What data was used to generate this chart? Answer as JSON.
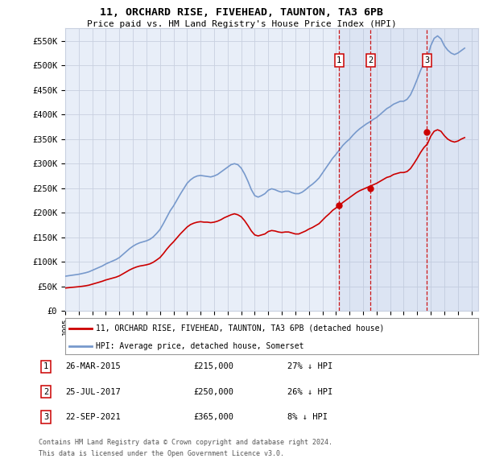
{
  "title": "11, ORCHARD RISE, FIVEHEAD, TAUNTON, TA3 6PB",
  "subtitle": "Price paid vs. HM Land Registry's House Price Index (HPI)",
  "ylim": [
    0,
    575000
  ],
  "yticks": [
    0,
    50000,
    100000,
    150000,
    200000,
    250000,
    300000,
    350000,
    400000,
    450000,
    500000,
    550000
  ],
  "ytick_labels": [
    "£0",
    "£50K",
    "£100K",
    "£150K",
    "£200K",
    "£250K",
    "£300K",
    "£350K",
    "£400K",
    "£450K",
    "£500K",
    "£550K"
  ],
  "xmin": 1995.0,
  "xmax": 2025.5,
  "background_color": "#ffffff",
  "plot_bg_color": "#e8eef8",
  "grid_color": "#c8d0e0",
  "hpi_color": "#7799cc",
  "sale_color": "#cc0000",
  "transactions": [
    {
      "label": "1",
      "date": "26-MAR-2015",
      "x": 2015.23,
      "price": 215000,
      "pct": "27% ↓ HPI"
    },
    {
      "label": "2",
      "date": "25-JUL-2017",
      "x": 2017.56,
      "price": 250000,
      "pct": "26% ↓ HPI"
    },
    {
      "label": "3",
      "date": "22-SEP-2021",
      "x": 2021.72,
      "price": 365000,
      "pct": "8% ↓ HPI"
    }
  ],
  "legend_property_label": "11, ORCHARD RISE, FIVEHEAD, TAUNTON, TA3 6PB (detached house)",
  "legend_hpi_label": "HPI: Average price, detached house, Somerset",
  "footnote1": "Contains HM Land Registry data © Crown copyright and database right 2024.",
  "footnote2": "This data is licensed under the Open Government Licence v3.0.",
  "hpi_x": [
    1995.0,
    1995.25,
    1995.5,
    1995.75,
    1996.0,
    1996.25,
    1996.5,
    1996.75,
    1997.0,
    1997.25,
    1997.5,
    1997.75,
    1998.0,
    1998.25,
    1998.5,
    1998.75,
    1999.0,
    1999.25,
    1999.5,
    1999.75,
    2000.0,
    2000.25,
    2000.5,
    2000.75,
    2001.0,
    2001.25,
    2001.5,
    2001.75,
    2002.0,
    2002.25,
    2002.5,
    2002.75,
    2003.0,
    2003.25,
    2003.5,
    2003.75,
    2004.0,
    2004.25,
    2004.5,
    2004.75,
    2005.0,
    2005.25,
    2005.5,
    2005.75,
    2006.0,
    2006.25,
    2006.5,
    2006.75,
    2007.0,
    2007.25,
    2007.5,
    2007.75,
    2008.0,
    2008.25,
    2008.5,
    2008.75,
    2009.0,
    2009.25,
    2009.5,
    2009.75,
    2010.0,
    2010.25,
    2010.5,
    2010.75,
    2011.0,
    2011.25,
    2011.5,
    2011.75,
    2012.0,
    2012.25,
    2012.5,
    2012.75,
    2013.0,
    2013.25,
    2013.5,
    2013.75,
    2014.0,
    2014.25,
    2014.5,
    2014.75,
    2015.0,
    2015.25,
    2015.5,
    2015.75,
    2016.0,
    2016.25,
    2016.5,
    2016.75,
    2017.0,
    2017.25,
    2017.5,
    2017.75,
    2018.0,
    2018.25,
    2018.5,
    2018.75,
    2019.0,
    2019.25,
    2019.5,
    2019.75,
    2020.0,
    2020.25,
    2020.5,
    2020.75,
    2021.0,
    2021.25,
    2021.5,
    2021.75,
    2022.0,
    2022.25,
    2022.5,
    2022.75,
    2023.0,
    2023.25,
    2023.5,
    2023.75,
    2024.0,
    2024.25,
    2024.5
  ],
  "hpi_y": [
    71000,
    72000,
    73000,
    74000,
    75000,
    76500,
    78000,
    80000,
    83000,
    86000,
    89000,
    92000,
    96000,
    99000,
    102000,
    105000,
    109000,
    115000,
    121000,
    127000,
    132000,
    136000,
    139000,
    141000,
    143000,
    146000,
    151000,
    158000,
    166000,
    178000,
    191000,
    204000,
    214000,
    226000,
    238000,
    249000,
    260000,
    267000,
    272000,
    275000,
    276000,
    275000,
    274000,
    273000,
    275000,
    278000,
    283000,
    288000,
    293000,
    298000,
    300000,
    298000,
    291000,
    279000,
    264000,
    247000,
    235000,
    232000,
    235000,
    239000,
    246000,
    249000,
    247000,
    244000,
    242000,
    244000,
    244000,
    241000,
    239000,
    239000,
    242000,
    247000,
    253000,
    258000,
    264000,
    271000,
    281000,
    291000,
    301000,
    311000,
    319000,
    328000,
    337000,
    344000,
    350000,
    358000,
    365000,
    371000,
    376000,
    381000,
    385000,
    390000,
    394000,
    400000,
    406000,
    412000,
    416000,
    421000,
    424000,
    427000,
    427000,
    431000,
    440000,
    455000,
    472000,
    490000,
    505000,
    516000,
    540000,
    555000,
    560000,
    554000,
    540000,
    531000,
    525000,
    522000,
    525000,
    530000,
    535000
  ],
  "red_x": [
    1995.0,
    1995.25,
    1995.5,
    1995.75,
    1996.0,
    1996.25,
    1996.5,
    1996.75,
    1997.0,
    1997.25,
    1997.5,
    1997.75,
    1998.0,
    1998.25,
    1998.5,
    1998.75,
    1999.0,
    1999.25,
    1999.5,
    1999.75,
    2000.0,
    2000.25,
    2000.5,
    2000.75,
    2001.0,
    2001.25,
    2001.5,
    2001.75,
    2002.0,
    2002.25,
    2002.5,
    2002.75,
    2003.0,
    2003.25,
    2003.5,
    2003.75,
    2004.0,
    2004.25,
    2004.5,
    2004.75,
    2005.0,
    2005.25,
    2005.5,
    2005.75,
    2006.0,
    2006.25,
    2006.5,
    2006.75,
    2007.0,
    2007.25,
    2007.5,
    2007.75,
    2008.0,
    2008.25,
    2008.5,
    2008.75,
    2009.0,
    2009.25,
    2009.5,
    2009.75,
    2010.0,
    2010.25,
    2010.5,
    2010.75,
    2011.0,
    2011.25,
    2011.5,
    2011.75,
    2012.0,
    2012.25,
    2012.5,
    2012.75,
    2013.0,
    2013.25,
    2013.5,
    2013.75,
    2014.0,
    2014.25,
    2014.5,
    2014.75,
    2015.0,
    2015.25,
    2015.5,
    2015.75,
    2016.0,
    2016.25,
    2016.5,
    2016.75,
    2017.0,
    2017.25,
    2017.5,
    2017.75,
    2018.0,
    2018.25,
    2018.5,
    2018.75,
    2019.0,
    2019.25,
    2019.5,
    2019.75,
    2020.0,
    2020.25,
    2020.5,
    2020.75,
    2021.0,
    2021.25,
    2021.5,
    2021.75,
    2022.0,
    2022.25,
    2022.5,
    2022.75,
    2023.0,
    2023.25,
    2023.5,
    2023.75,
    2024.0,
    2024.25,
    2024.5
  ],
  "red_y": [
    47000,
    47700,
    48400,
    49000,
    49700,
    50500,
    51500,
    52800,
    54800,
    56800,
    58800,
    60900,
    63400,
    65300,
    67200,
    69100,
    71800,
    75700,
    79700,
    83700,
    87000,
    89700,
    91700,
    92900,
    94200,
    96100,
    99400,
    104000,
    109000,
    117000,
    126000,
    134000,
    141000,
    149000,
    157000,
    164000,
    171000,
    176000,
    179000,
    181000,
    182000,
    181000,
    181000,
    180000,
    181000,
    183000,
    186000,
    190000,
    193000,
    196000,
    198000,
    196000,
    192000,
    184000,
    174000,
    163000,
    155000,
    153000,
    155000,
    157000,
    162000,
    164000,
    163000,
    161000,
    160000,
    161000,
    161000,
    159000,
    157000,
    157000,
    160000,
    163000,
    167000,
    170000,
    174000,
    178000,
    185000,
    192000,
    198000,
    205000,
    210000,
    215000,
    221000,
    226000,
    231000,
    236000,
    241000,
    245000,
    248000,
    251000,
    254000,
    257000,
    260000,
    264000,
    268000,
    272000,
    274000,
    278000,
    280000,
    282000,
    282000,
    284000,
    290000,
    300000,
    311000,
    323000,
    333000,
    340000,
    356000,
    366000,
    369000,
    366000,
    357000,
    350000,
    346000,
    344000,
    346000,
    350000,
    353000
  ]
}
